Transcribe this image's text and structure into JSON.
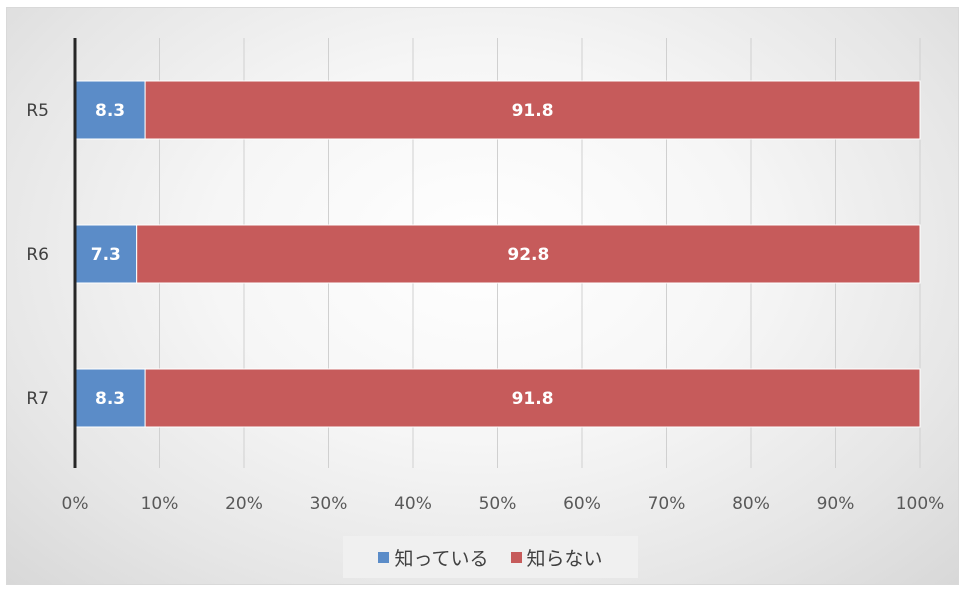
{
  "chart_data": {
    "type": "bar",
    "orientation": "horizontal",
    "stacked": true,
    "categories": [
      "R5",
      "R6",
      "R7"
    ],
    "series": [
      {
        "name": "知っている",
        "values": [
          8.3,
          7.3,
          8.3
        ],
        "color": "#5b8cc8"
      },
      {
        "name": "知らない",
        "values": [
          91.8,
          92.8,
          91.8
        ],
        "color": "#c65b5b"
      }
    ],
    "xlim": [
      0,
      100
    ],
    "xticks": [
      "0%",
      "10%",
      "20%",
      "30%",
      "40%",
      "50%",
      "60%",
      "70%",
      "80%",
      "90%",
      "100%"
    ],
    "grid": true,
    "legend_position": "bottom",
    "data_labels": true
  }
}
